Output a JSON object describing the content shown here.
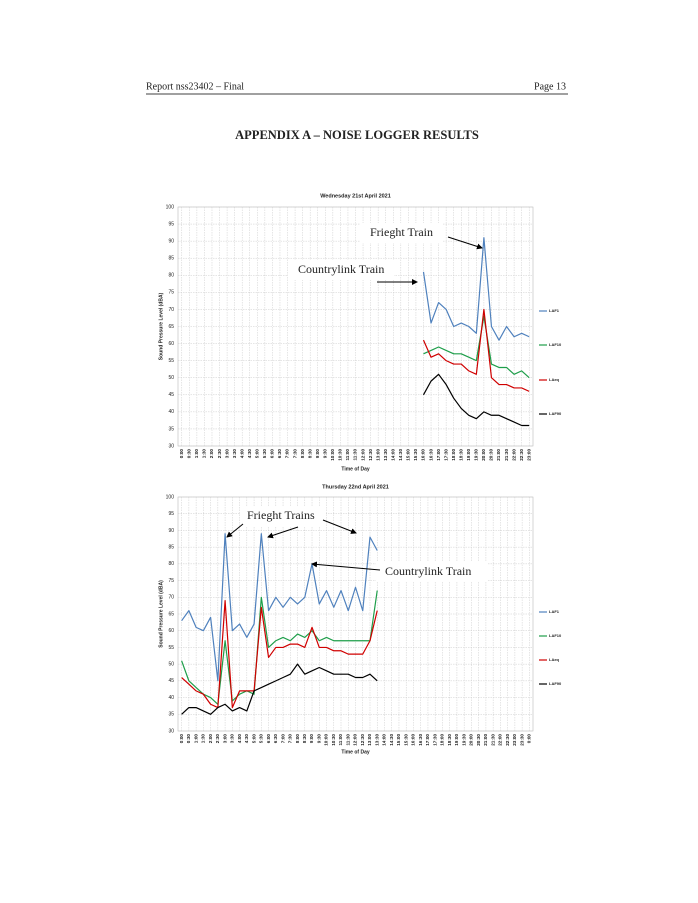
{
  "header": {
    "left": "Report nss23402 – Final",
    "right": "Page 13"
  },
  "title": "APPENDIX A – NOISE LOGGER RESULTS",
  "chart_data": [
    {
      "type": "line",
      "title": "Wednesday 21st April 2021",
      "x_label": "Time of Day",
      "y_label": "Sound Pressure Level (dBA)",
      "categories": [
        "0:00",
        "0:30",
        "1:00",
        "1:30",
        "2:00",
        "2:30",
        "3:00",
        "3:30",
        "4:00",
        "4:30",
        "5:00",
        "5:30",
        "6:00",
        "6:30",
        "7:00",
        "7:30",
        "8:00",
        "8:30",
        "9:00",
        "9:30",
        "10:00",
        "10:30",
        "11:00",
        "11:30",
        "12:00",
        "12:30",
        "13:00",
        "13:30",
        "14:00",
        "14:30",
        "15:00",
        "15:30",
        "16:00",
        "16:30",
        "17:00",
        "17:30",
        "18:00",
        "18:30",
        "19:00",
        "19:30",
        "20:00",
        "20:30",
        "21:00",
        "21:30",
        "22:00",
        "22:30",
        "23:00"
      ],
      "ylim": [
        30,
        100
      ],
      "yticks": [
        30,
        35,
        40,
        45,
        50,
        55,
        60,
        65,
        70,
        75,
        80,
        85,
        90,
        95,
        100
      ],
      "grid": true,
      "annotations": [
        "Frieght Train",
        "Countrylink Train"
      ],
      "series": [
        {
          "name": "LAF1",
          "color": "#4f81bd",
          "values": [
            null,
            null,
            null,
            null,
            null,
            null,
            null,
            null,
            null,
            null,
            null,
            null,
            null,
            null,
            null,
            null,
            null,
            null,
            null,
            null,
            null,
            null,
            null,
            null,
            null,
            null,
            null,
            null,
            null,
            null,
            null,
            null,
            81,
            66,
            72,
            70,
            65,
            66,
            65,
            63,
            91,
            65,
            61,
            65,
            62,
            63,
            62
          ]
        },
        {
          "name": "LAF10",
          "color": "#1e9e4a",
          "values": [
            null,
            null,
            null,
            null,
            null,
            null,
            null,
            null,
            null,
            null,
            null,
            null,
            null,
            null,
            null,
            null,
            null,
            null,
            null,
            null,
            null,
            null,
            null,
            null,
            null,
            null,
            null,
            null,
            null,
            null,
            null,
            null,
            57,
            58,
            59,
            58,
            57,
            57,
            56,
            55,
            68,
            54,
            53,
            53,
            51,
            52,
            50
          ]
        },
        {
          "name": "LAeq",
          "color": "#d00000",
          "values": [
            null,
            null,
            null,
            null,
            null,
            null,
            null,
            null,
            null,
            null,
            null,
            null,
            null,
            null,
            null,
            null,
            null,
            null,
            null,
            null,
            null,
            null,
            null,
            null,
            null,
            null,
            null,
            null,
            null,
            null,
            null,
            null,
            61,
            56,
            57,
            55,
            54,
            54,
            52,
            51,
            70,
            50,
            48,
            48,
            47,
            47,
            46
          ]
        },
        {
          "name": "LAF90",
          "color": "#000000",
          "values": [
            null,
            null,
            null,
            null,
            null,
            null,
            null,
            null,
            null,
            null,
            null,
            null,
            null,
            null,
            null,
            null,
            null,
            null,
            null,
            null,
            null,
            null,
            null,
            null,
            null,
            null,
            null,
            null,
            null,
            null,
            null,
            null,
            45,
            49,
            51,
            48,
            44,
            41,
            39,
            38,
            40,
            39,
            39,
            38,
            37,
            36,
            36
          ]
        }
      ]
    },
    {
      "type": "line",
      "title": "Thursday 22nd April 2021",
      "x_label": "Time of Day",
      "y_label": "Sound Pressure Level (dBA)",
      "categories": [
        "0:00",
        "0:30",
        "1:00",
        "1:30",
        "2:00",
        "2:30",
        "3:00",
        "3:30",
        "4:00",
        "4:30",
        "5:00",
        "5:30",
        "6:00",
        "6:30",
        "7:00",
        "7:30",
        "8:00",
        "8:30",
        "9:00",
        "9:30",
        "10:00",
        "10:30",
        "11:00",
        "11:30",
        "12:00",
        "12:30",
        "13:00",
        "13:30",
        "14:00",
        "14:30",
        "15:00",
        "15:30",
        "16:00",
        "16:30",
        "17:00",
        "17:30",
        "18:00",
        "18:30",
        "19:00",
        "19:30",
        "20:00",
        "20:30",
        "21:00",
        "21:30",
        "22:00",
        "22:30",
        "23:00",
        "23:30",
        "0:00"
      ],
      "ylim": [
        30,
        100
      ],
      "yticks": [
        30,
        35,
        40,
        45,
        50,
        55,
        60,
        65,
        70,
        75,
        80,
        85,
        90,
        95,
        100
      ],
      "grid": true,
      "annotations": [
        "Frieght Trains",
        "Countrylink Train"
      ],
      "series": [
        {
          "name": "LAF1",
          "color": "#4f81bd",
          "values": [
            63,
            66,
            61,
            60,
            64,
            45,
            89,
            60,
            62,
            58,
            62,
            89,
            66,
            70,
            67,
            70,
            68,
            70,
            80,
            68,
            72,
            67,
            72,
            66,
            73,
            66,
            88,
            84,
            null,
            null,
            null,
            null,
            null,
            null,
            null,
            null,
            null,
            null,
            null,
            null,
            null,
            null,
            null,
            null,
            null,
            null,
            null,
            null,
            null
          ]
        },
        {
          "name": "LAF10",
          "color": "#1e9e4a",
          "values": [
            51,
            45,
            43,
            41,
            40,
            38,
            57,
            39,
            41,
            42,
            41,
            70,
            55,
            57,
            58,
            57,
            59,
            58,
            60,
            57,
            58,
            57,
            57,
            57,
            57,
            57,
            57,
            72,
            null,
            null,
            null,
            null,
            null,
            null,
            null,
            null,
            null,
            null,
            null,
            null,
            null,
            null,
            null,
            null,
            null,
            null,
            null,
            null,
            null
          ]
        },
        {
          "name": "LAeq",
          "color": "#d00000",
          "values": [
            46,
            44,
            42,
            41,
            38,
            37,
            69,
            37,
            42,
            42,
            42,
            67,
            52,
            55,
            55,
            56,
            56,
            55,
            61,
            55,
            55,
            54,
            54,
            53,
            53,
            53,
            57,
            66,
            null,
            null,
            null,
            null,
            null,
            null,
            null,
            null,
            null,
            null,
            null,
            null,
            null,
            null,
            null,
            null,
            null,
            null,
            null,
            null,
            null
          ]
        },
        {
          "name": "LAF90",
          "color": "#000000",
          "values": [
            35,
            37,
            37,
            36,
            35,
            37,
            38,
            36,
            37,
            36,
            42,
            43,
            44,
            45,
            46,
            47,
            50,
            47,
            48,
            49,
            48,
            47,
            47,
            47,
            46,
            46,
            47,
            45,
            null,
            null,
            null,
            null,
            null,
            null,
            null,
            null,
            null,
            null,
            null,
            null,
            null,
            null,
            null,
            null,
            null,
            null,
            null,
            null,
            null
          ]
        }
      ]
    }
  ]
}
